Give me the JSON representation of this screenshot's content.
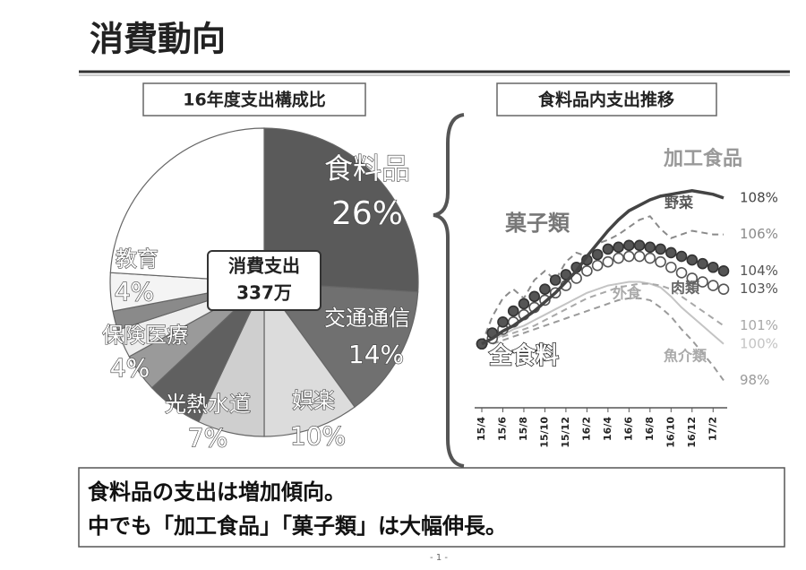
{
  "header": {
    "title": "消費動向"
  },
  "chart_data": [
    {
      "type": "pie",
      "title": "16年度支出構成比",
      "center_label": [
        "消費支出",
        "337万"
      ],
      "categories": [
        "食料品",
        "交通通信",
        "娯楽",
        "光熱水道",
        null,
        "保険医療",
        null,
        null,
        "教育",
        null
      ],
      "values": [
        26,
        14,
        10,
        7,
        6,
        4,
        3,
        2,
        4,
        24
      ],
      "value_labels": [
        "26%",
        "14%",
        "10%",
        "7%",
        null,
        "4%",
        null,
        null,
        "4%",
        null
      ],
      "colors": [
        "#5a5a5a",
        "#707070",
        "#dcdcdc",
        "#cfcfcf",
        "#606060",
        "#9a9a9a",
        "#eeeeee",
        "#8a8a8a",
        "#f4f4f4",
        "#ffffff"
      ]
    },
    {
      "type": "line",
      "title": "食料品内支出推移",
      "categories": [
        "15/4",
        null,
        "15/6",
        null,
        "15/8",
        null,
        "15/10",
        null,
        "15/12",
        null,
        "16/2",
        null,
        "16/4",
        null,
        "16/6",
        null,
        "16/8",
        null,
        "16/10",
        null,
        "16/12",
        null,
        "17/2",
        null
      ],
      "ylim": [
        96.5,
        110.5
      ],
      "series": [
        {
          "name": "加工食品",
          "color": "#444444",
          "style": "solid",
          "values": [
            100,
            100.3,
            100.7,
            101,
            101.4,
            101.8,
            102.3,
            102.8,
            103.4,
            104,
            104.8,
            105.5,
            106.2,
            106.8,
            107.3,
            107.6,
            107.9,
            108.1,
            108.2,
            108.3,
            108.4,
            108.3,
            108.2,
            108
          ],
          "value_labels": [
            null,
            null,
            null,
            null,
            null,
            null,
            null,
            null,
            null,
            null,
            null,
            null,
            null,
            null,
            null,
            null,
            null,
            null,
            null,
            null,
            null,
            null,
            null,
            "108%"
          ]
        },
        {
          "name": "野菜",
          "color": "#8a8a8a",
          "style": "dashed",
          "values": [
            100,
            101.5,
            102.5,
            103,
            102.5,
            103.5,
            104,
            103.5,
            104.5,
            105,
            104.8,
            105.5,
            105.7,
            106,
            106.4,
            106.8,
            107,
            106.3,
            105.8,
            106,
            106.2,
            106.1,
            106,
            106
          ],
          "value_labels": [
            null,
            null,
            null,
            null,
            null,
            null,
            null,
            null,
            null,
            null,
            null,
            null,
            null,
            null,
            null,
            null,
            null,
            null,
            null,
            null,
            null,
            null,
            null,
            "106%"
          ]
        },
        {
          "name": "菓子類",
          "color": "#555555",
          "style": "dots",
          "values": [
            100,
            100.6,
            101.2,
            101.8,
            102.2,
            102.6,
            103,
            103.5,
            103.8,
            104.2,
            104.6,
            104.9,
            105.2,
            105.3,
            105.4,
            105.4,
            105.3,
            105.2,
            105,
            104.8,
            104.6,
            104.4,
            104.2,
            104
          ],
          "value_labels": [
            null,
            null,
            null,
            null,
            null,
            null,
            null,
            null,
            null,
            null,
            null,
            null,
            null,
            null,
            null,
            null,
            null,
            null,
            null,
            null,
            null,
            null,
            null,
            "104%"
          ]
        },
        {
          "name": "肉類",
          "color": "#555555",
          "style": "circles",
          "values": [
            100,
            100.3,
            100.8,
            101.2,
            101.6,
            102,
            102.4,
            102.8,
            103.2,
            103.6,
            104,
            104.3,
            104.5,
            104.7,
            104.8,
            104.8,
            104.7,
            104.5,
            104.2,
            103.9,
            103.6,
            103.4,
            103.2,
            103
          ],
          "value_labels": [
            null,
            null,
            null,
            null,
            null,
            null,
            null,
            null,
            null,
            null,
            null,
            null,
            null,
            null,
            null,
            null,
            null,
            null,
            null,
            null,
            null,
            null,
            null,
            "103%"
          ]
        },
        {
          "name": "外食",
          "color": "#a8a8a8",
          "style": "dashed",
          "values": [
            100,
            100.2,
            100.4,
            100.6,
            100.8,
            101,
            101.3,
            101.6,
            101.9,
            102.2,
            102.5,
            102.7,
            102.9,
            103.1,
            103.2,
            103.3,
            103.3,
            103.2,
            103,
            102.6,
            102.2,
            101.8,
            101.4,
            101
          ],
          "value_labels": [
            null,
            null,
            null,
            null,
            null,
            null,
            null,
            null,
            null,
            null,
            null,
            null,
            null,
            null,
            null,
            null,
            null,
            null,
            null,
            null,
            null,
            null,
            null,
            "101%"
          ]
        },
        {
          "name": "全食料",
          "color": "#c4c4c4",
          "style": "solid",
          "values": [
            100,
            100.2,
            100.5,
            100.8,
            101,
            101.3,
            101.6,
            101.9,
            102.2,
            102.5,
            102.8,
            103,
            103.2,
            103.3,
            103.4,
            103.4,
            103.3,
            103.1,
            102.6,
            102,
            101.5,
            101,
            100.5,
            100
          ],
          "value_labels": [
            null,
            null,
            null,
            null,
            null,
            null,
            null,
            null,
            null,
            null,
            null,
            null,
            null,
            null,
            null,
            null,
            null,
            null,
            null,
            null,
            null,
            null,
            null,
            "100%"
          ]
        },
        {
          "name": "魚介類",
          "color": "#9a9a9a",
          "style": "dashed",
          "values": [
            100,
            100,
            100.2,
            100.4,
            100.6,
            100.8,
            101,
            101.2,
            101.4,
            101.6,
            101.8,
            102,
            102.2,
            102.4,
            102.5,
            102.5,
            102.4,
            102,
            101.5,
            100.8,
            100.2,
            99.5,
            98.8,
            98
          ],
          "value_labels": [
            null,
            null,
            null,
            null,
            null,
            null,
            null,
            null,
            null,
            null,
            null,
            null,
            null,
            null,
            null,
            null,
            null,
            null,
            null,
            null,
            null,
            null,
            null,
            "98%"
          ]
        }
      ]
    }
  ],
  "summary": [
    "食料品の支出は増加傾向。",
    "中でも「加工食品」「菓子類」は大幅伸長。"
  ],
  "page_number": "- 1 -"
}
